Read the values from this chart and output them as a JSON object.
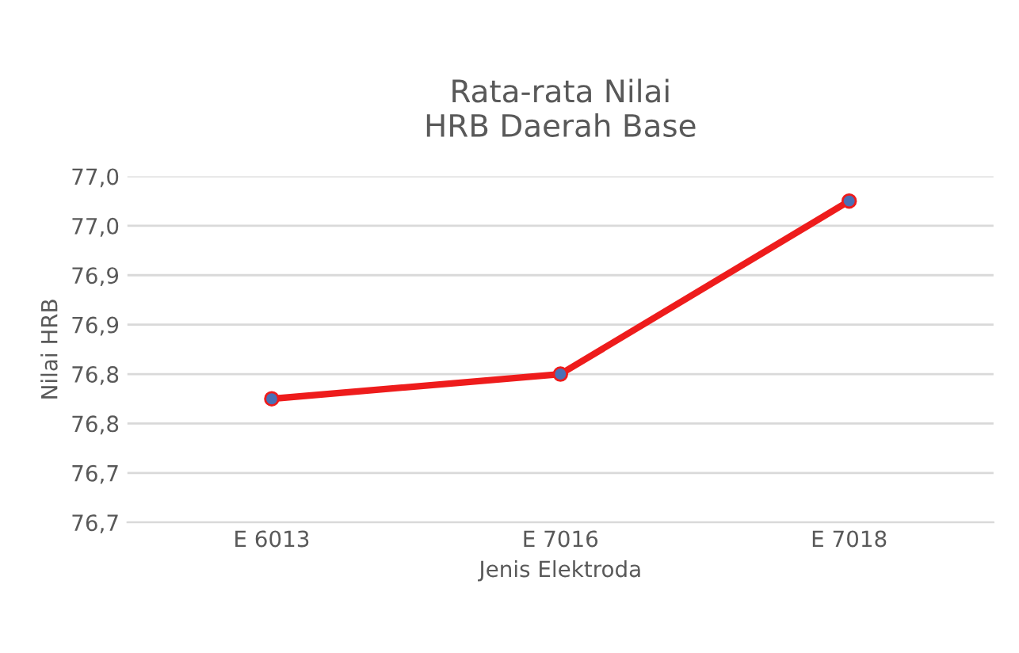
{
  "chart_data": {
    "type": "line",
    "title": "Rata-rata Nilai\nHRB Daerah Base",
    "xlabel": "Jenis Elektroda",
    "ylabel": "Nilai HRB",
    "categories": [
      "E 6013",
      "E 7016",
      "E 7018"
    ],
    "series": [
      {
        "color": "#ee1c1c",
        "values": [
          76.775,
          76.8,
          76.975
        ]
      }
    ],
    "ylim": [
      76.65,
      77.0
    ],
    "yticks": [
      {
        "value": 76.65,
        "label": "76,7"
      },
      {
        "value": 76.7,
        "label": "76,7"
      },
      {
        "value": 76.75,
        "label": "76,8"
      },
      {
        "value": 76.8,
        "label": "76,8"
      },
      {
        "value": 76.85,
        "label": "76,9"
      },
      {
        "value": 76.9,
        "label": "76,9"
      },
      {
        "value": 76.95,
        "label": "77,0"
      },
      {
        "value": 77.0,
        "label": "77,0"
      }
    ],
    "grid": "y",
    "marker": "circle",
    "line_style": "solid"
  }
}
